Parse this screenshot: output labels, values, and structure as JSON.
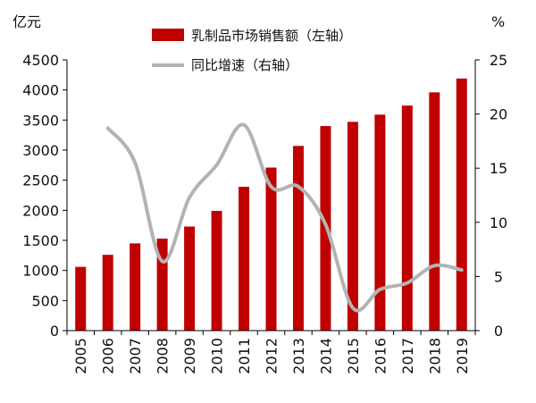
{
  "chart_data": {
    "type": "bar",
    "categories": [
      "2005",
      "2006",
      "2007",
      "2008",
      "2009",
      "2010",
      "2011",
      "2012",
      "2013",
      "2014",
      "2015",
      "2016",
      "2017",
      "2018",
      "2019"
    ],
    "series": [
      {
        "name": "乳制品市场销售额（左轴）",
        "type": "bar",
        "axis": "left",
        "color": "#c00000",
        "values": [
          1060,
          1260,
          1450,
          1530,
          1730,
          1990,
          2390,
          2710,
          3070,
          3400,
          3470,
          3590,
          3740,
          3960,
          4190
        ]
      },
      {
        "name": "同比增速（右轴）",
        "type": "line",
        "axis": "right",
        "color": "#b3b3b3",
        "values": [
          null,
          18.7,
          15.5,
          6.4,
          12.3,
          15.3,
          19.0,
          13.3,
          13.3,
          9.8,
          2.1,
          3.8,
          4.4,
          6.0,
          5.6
        ]
      }
    ],
    "left_unit": "亿元",
    "right_unit": "%",
    "left_ticks": [
      "0",
      "500",
      "1000",
      "1500",
      "2000",
      "2500",
      "3000",
      "3500",
      "4000",
      "4500"
    ],
    "right_ticks": [
      "0",
      "5",
      "10",
      "15",
      "20",
      "25"
    ],
    "ylim_left": [
      0,
      4500
    ],
    "ylim_right": [
      0,
      25
    ],
    "legend_position": "top-center",
    "grid": false
  }
}
